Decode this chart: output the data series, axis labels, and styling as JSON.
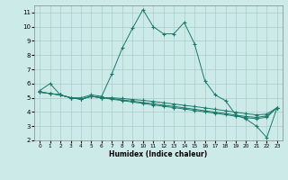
{
  "xlabel": "Humidex (Indice chaleur)",
  "bg_color": "#cceae8",
  "grid_color": "#aacccc",
  "line_color": "#1a7a6a",
  "xlim": [
    -0.5,
    23.5
  ],
  "ylim": [
    2,
    11.5
  ],
  "xticks": [
    0,
    1,
    2,
    3,
    4,
    5,
    6,
    7,
    8,
    9,
    10,
    11,
    12,
    13,
    14,
    15,
    16,
    17,
    18,
    19,
    20,
    21,
    22,
    23
  ],
  "yticks": [
    2,
    3,
    4,
    5,
    6,
    7,
    8,
    9,
    10,
    11
  ],
  "line1_x": [
    0,
    1,
    2,
    3,
    4,
    5,
    6,
    7,
    8,
    9,
    10,
    11,
    12,
    13,
    14,
    15,
    16,
    17,
    18,
    19,
    20,
    21,
    22,
    23
  ],
  "line1_y": [
    5.5,
    6.0,
    5.2,
    5.0,
    5.0,
    5.2,
    5.1,
    6.7,
    8.5,
    9.9,
    11.2,
    10.0,
    9.5,
    9.5,
    10.3,
    8.8,
    6.2,
    5.2,
    4.8,
    3.8,
    3.5,
    3.0,
    2.2,
    4.3
  ],
  "line2_x": [
    0,
    1,
    2,
    3,
    4,
    5,
    6,
    7,
    8,
    9,
    10,
    11,
    12,
    13,
    14,
    15,
    16,
    17,
    18,
    19,
    20,
    21,
    22,
    23
  ],
  "line2_y": [
    5.4,
    5.3,
    5.2,
    5.0,
    4.9,
    5.1,
    5.0,
    5.0,
    4.95,
    4.88,
    4.82,
    4.74,
    4.65,
    4.56,
    4.47,
    4.38,
    4.29,
    4.19,
    4.09,
    3.98,
    3.88,
    3.8,
    3.85,
    4.3
  ],
  "line3_x": [
    0,
    1,
    2,
    3,
    4,
    5,
    6,
    7,
    8,
    9,
    10,
    11,
    12,
    13,
    14,
    15,
    16,
    17,
    18,
    19,
    20,
    21,
    22,
    23
  ],
  "line3_y": [
    5.4,
    5.3,
    5.2,
    5.0,
    4.9,
    5.1,
    5.0,
    4.95,
    4.85,
    4.76,
    4.67,
    4.58,
    4.48,
    4.39,
    4.29,
    4.19,
    4.09,
    3.99,
    3.89,
    3.78,
    3.68,
    3.62,
    3.72,
    4.3
  ],
  "line4_x": [
    0,
    1,
    2,
    3,
    4,
    5,
    6,
    7,
    8,
    9,
    10,
    11,
    12,
    13,
    14,
    15,
    16,
    17,
    18,
    19,
    20,
    21,
    22,
    23
  ],
  "line4_y": [
    5.4,
    5.3,
    5.2,
    5.0,
    4.9,
    5.1,
    5.0,
    4.9,
    4.8,
    4.7,
    4.6,
    4.5,
    4.4,
    4.31,
    4.21,
    4.11,
    4.01,
    3.91,
    3.81,
    3.7,
    3.6,
    3.53,
    3.63,
    4.3
  ]
}
